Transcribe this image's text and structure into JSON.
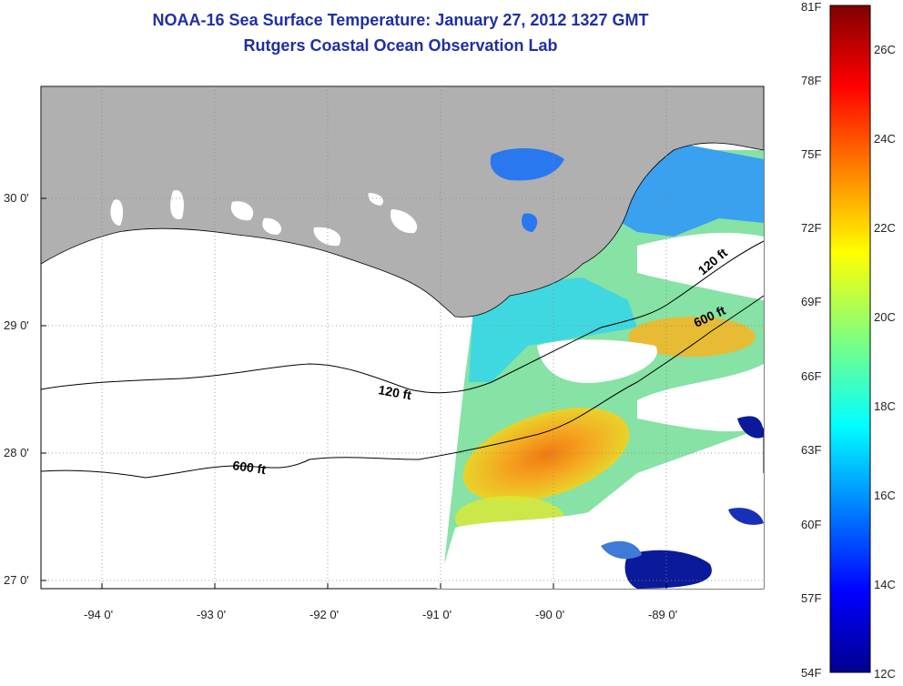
{
  "header": {
    "title": "NOAA-16 Sea Surface Temperature:  January 27, 2012 1327 GMT",
    "subtitle": "Rutgers Coastal Ocean Observation Lab"
  },
  "map": {
    "lat_ticks": [
      "30 0'",
      "29 0'",
      "28 0'",
      "27 0'"
    ],
    "lon_ticks": [
      "-94 0'",
      "-93 0'",
      "-92 0'",
      "-91 0'",
      "-90 0'",
      "-89 0'"
    ],
    "isobaths": [
      "120 ft",
      "600 ft",
      "120 ft",
      "600 ft"
    ]
  },
  "colorbar": {
    "fahrenheit": [
      "81F",
      "78F",
      "75F",
      "72F",
      "69F",
      "66F",
      "63F",
      "60F",
      "57F",
      "54F"
    ],
    "celsius": [
      "26C",
      "24C",
      "22C",
      "20C",
      "18C",
      "16C",
      "14C",
      "12C"
    ]
  },
  "colors": {
    "land": "#b0b0b0",
    "title": "#1f2fa6"
  }
}
